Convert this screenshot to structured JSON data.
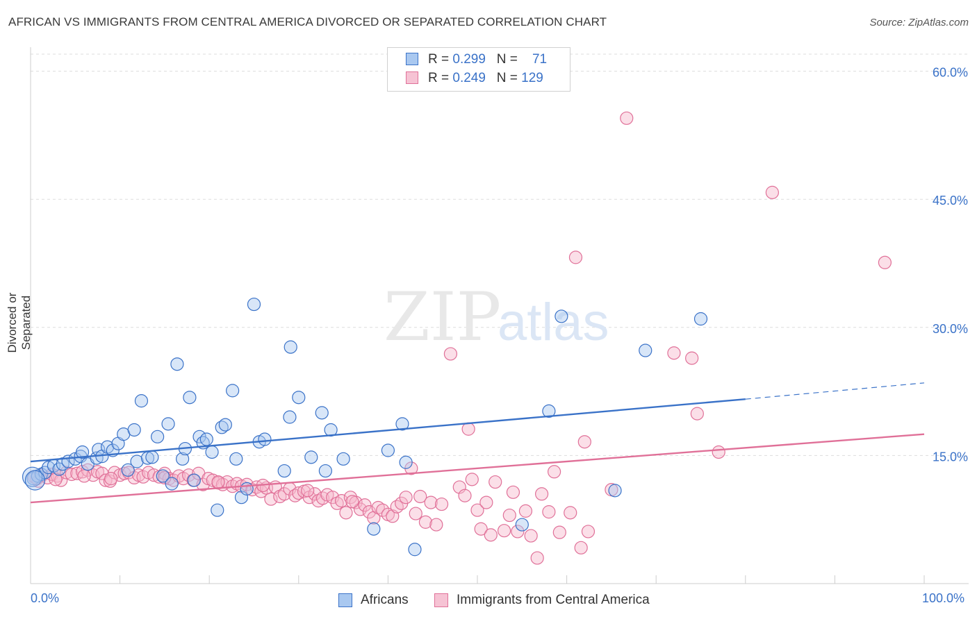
{
  "title": "AFRICAN VS IMMIGRANTS FROM CENTRAL AMERICA DIVORCED OR SEPARATED CORRELATION CHART",
  "source": "Source: ZipAtlas.com",
  "watermark": {
    "zip": "ZIP",
    "atlas": "atlas"
  },
  "legend": {
    "row1": {
      "r_label": "R = ",
      "r_value": "0.299",
      "n_label": "N = ",
      "n_value": "71"
    },
    "row2": {
      "r_label": "R = ",
      "r_value": "0.249",
      "n_label": "N = ",
      "n_value": "129"
    }
  },
  "colors": {
    "blue": "#3a72c8",
    "blue_fill": "#a9c8f0",
    "pink": "#e07098",
    "pink_fill": "#f6b9cd",
    "grid": "#dddddd",
    "axis_text": "#3a72c8"
  },
  "chart_data": {
    "type": "scatter",
    "title": "AFRICAN VS IMMIGRANTS FROM CENTRAL AMERICA DIVORCED OR SEPARATED CORRELATION CHART",
    "xlabel": "",
    "ylabel": "Divorced or Separated",
    "xlim": [
      0,
      100
    ],
    "ylim": [
      0,
      62
    ],
    "x_tick_labels": [
      "0.0%",
      "100.0%"
    ],
    "y_tick_labels": [
      "15.0%",
      "30.0%",
      "45.0%",
      "60.0%"
    ],
    "y_ticks": [
      15,
      30,
      45,
      60
    ],
    "grid": true,
    "legend_position": "bottom",
    "series": [
      {
        "name": "Africans",
        "color": "#3a72c8",
        "R": 0.299,
        "N": 71,
        "trend": {
          "x0": 0,
          "y0": 14.3,
          "x1": 80,
          "y1": 21.6,
          "dashed_to_x": 100,
          "dashed_to_y": 23.5
        },
        "points": [
          [
            0.3,
            12.3
          ],
          [
            0.8,
            12.6
          ],
          [
            1.2,
            12.8
          ],
          [
            1.6,
            13.0
          ],
          [
            2.0,
            13.6
          ],
          [
            2.6,
            13.8
          ],
          [
            3.2,
            13.4
          ],
          [
            3.6,
            14.0
          ],
          [
            4.2,
            14.3
          ],
          [
            5.0,
            14.6
          ],
          [
            5.6,
            14.9
          ],
          [
            5.8,
            15.4
          ],
          [
            6.4,
            14.0
          ],
          [
            7.4,
            14.7
          ],
          [
            7.6,
            15.7
          ],
          [
            8.0,
            14.9
          ],
          [
            8.6,
            16.0
          ],
          [
            9.2,
            15.6
          ],
          [
            9.8,
            16.4
          ],
          [
            10.4,
            17.5
          ],
          [
            10.9,
            13.3
          ],
          [
            11.6,
            18.0
          ],
          [
            11.9,
            14.3
          ],
          [
            12.4,
            21.4
          ],
          [
            13.1,
            14.7
          ],
          [
            13.6,
            14.8
          ],
          [
            14.2,
            17.2
          ],
          [
            14.8,
            12.6
          ],
          [
            15.4,
            18.7
          ],
          [
            15.8,
            11.7
          ],
          [
            16.4,
            25.7
          ],
          [
            17.0,
            14.6
          ],
          [
            17.3,
            15.8
          ],
          [
            17.8,
            21.8
          ],
          [
            18.3,
            12.1
          ],
          [
            18.9,
            17.2
          ],
          [
            19.3,
            16.5
          ],
          [
            19.7,
            16.9
          ],
          [
            20.3,
            15.4
          ],
          [
            20.9,
            8.6
          ],
          [
            21.4,
            18.3
          ],
          [
            21.8,
            18.6
          ],
          [
            22.6,
            22.6
          ],
          [
            23.0,
            14.6
          ],
          [
            23.6,
            10.1
          ],
          [
            24.2,
            11.1
          ],
          [
            25.0,
            32.7
          ],
          [
            25.6,
            16.6
          ],
          [
            26.2,
            16.9
          ],
          [
            28.4,
            13.2
          ],
          [
            29.0,
            19.5
          ],
          [
            29.1,
            27.7
          ],
          [
            30.0,
            21.8
          ],
          [
            31.4,
            14.8
          ],
          [
            32.6,
            20.0
          ],
          [
            33.0,
            13.2
          ],
          [
            33.6,
            18.0
          ],
          [
            35.0,
            14.6
          ],
          [
            38.4,
            6.4
          ],
          [
            40.0,
            15.6
          ],
          [
            41.6,
            18.7
          ],
          [
            42.0,
            14.2
          ],
          [
            43.0,
            4.0
          ],
          [
            55.0,
            6.9
          ],
          [
            58.0,
            20.2
          ],
          [
            59.4,
            31.3
          ],
          [
            65.4,
            10.9
          ],
          [
            68.8,
            27.3
          ],
          [
            75.0,
            31.0
          ],
          [
            0.2,
            12.5
          ],
          [
            0.5,
            12.1
          ]
        ]
      },
      {
        "name": "Immigrants from Central America",
        "color": "#e07098",
        "R": 0.249,
        "N": 129,
        "trend": {
          "x0": 0,
          "y0": 9.5,
          "x1": 100,
          "y1": 17.5
        },
        "points": [
          [
            0.4,
            12.5
          ],
          [
            0.9,
            12.0
          ],
          [
            1.3,
            12.7
          ],
          [
            1.9,
            12.4
          ],
          [
            2.4,
            12.8
          ],
          [
            3.0,
            12.6
          ],
          [
            3.4,
            12.1
          ],
          [
            4.0,
            13.0
          ],
          [
            4.6,
            12.8
          ],
          [
            5.2,
            12.9
          ],
          [
            5.8,
            13.1
          ],
          [
            6.4,
            13.3
          ],
          [
            7.0,
            12.7
          ],
          [
            7.5,
            13.1
          ],
          [
            8.0,
            12.9
          ],
          [
            8.4,
            12.1
          ],
          [
            8.9,
            12.0
          ],
          [
            9.4,
            13.0
          ],
          [
            10.0,
            12.7
          ],
          [
            10.5,
            12.9
          ],
          [
            11.0,
            13.0
          ],
          [
            11.6,
            12.4
          ],
          [
            12.1,
            12.7
          ],
          [
            12.6,
            12.5
          ],
          [
            13.2,
            13.0
          ],
          [
            13.8,
            12.7
          ],
          [
            14.4,
            12.5
          ],
          [
            15.0,
            12.9
          ],
          [
            15.5,
            12.3
          ],
          [
            16.0,
            12.1
          ],
          [
            16.6,
            12.6
          ],
          [
            17.1,
            12.3
          ],
          [
            17.7,
            12.7
          ],
          [
            18.2,
            12.1
          ],
          [
            18.8,
            12.9
          ],
          [
            19.3,
            11.6
          ],
          [
            19.9,
            12.3
          ],
          [
            20.4,
            12.1
          ],
          [
            21.0,
            11.8
          ],
          [
            21.5,
            11.6
          ],
          [
            22.0,
            11.9
          ],
          [
            22.6,
            11.4
          ],
          [
            23.1,
            11.7
          ],
          [
            23.6,
            11.4
          ],
          [
            24.2,
            11.6
          ],
          [
            24.8,
            11.0
          ],
          [
            25.3,
            11.3
          ],
          [
            25.8,
            10.8
          ],
          [
            26.4,
            11.2
          ],
          [
            26.9,
            9.9
          ],
          [
            27.4,
            11.3
          ],
          [
            27.9,
            10.2
          ],
          [
            28.4,
            10.5
          ],
          [
            29.0,
            11.1
          ],
          [
            29.6,
            10.3
          ],
          [
            30.0,
            10.6
          ],
          [
            30.6,
            10.8
          ],
          [
            31.2,
            10.1
          ],
          [
            31.8,
            10.5
          ],
          [
            32.2,
            9.7
          ],
          [
            32.7,
            10.0
          ],
          [
            33.2,
            10.4
          ],
          [
            33.8,
            10.1
          ],
          [
            34.3,
            9.4
          ],
          [
            34.8,
            9.7
          ],
          [
            35.3,
            8.3
          ],
          [
            35.8,
            10.1
          ],
          [
            36.4,
            9.5
          ],
          [
            36.9,
            8.7
          ],
          [
            37.4,
            9.2
          ],
          [
            37.9,
            8.4
          ],
          [
            38.4,
            7.7
          ],
          [
            38.9,
            8.9
          ],
          [
            39.4,
            8.6
          ],
          [
            40.0,
            8.1
          ],
          [
            40.5,
            7.9
          ],
          [
            41.0,
            9.0
          ],
          [
            41.5,
            9.4
          ],
          [
            42.0,
            10.1
          ],
          [
            42.6,
            13.5
          ],
          [
            43.1,
            8.2
          ],
          [
            43.6,
            10.2
          ],
          [
            44.2,
            7.2
          ],
          [
            44.8,
            9.5
          ],
          [
            45.4,
            6.9
          ],
          [
            46.0,
            9.3
          ],
          [
            47.0,
            26.9
          ],
          [
            48.0,
            11.3
          ],
          [
            48.6,
            10.3
          ],
          [
            49.0,
            18.1
          ],
          [
            49.4,
            12.2
          ],
          [
            50.0,
            8.6
          ],
          [
            50.4,
            6.4
          ],
          [
            51.0,
            9.5
          ],
          [
            51.5,
            5.7
          ],
          [
            52.0,
            11.9
          ],
          [
            53.0,
            6.2
          ],
          [
            53.6,
            8.0
          ],
          [
            54.0,
            10.7
          ],
          [
            54.5,
            6.1
          ],
          [
            55.4,
            8.5
          ],
          [
            56.0,
            5.6
          ],
          [
            56.7,
            3.0
          ],
          [
            57.2,
            10.5
          ],
          [
            58.0,
            8.4
          ],
          [
            58.6,
            13.1
          ],
          [
            59.2,
            6.0
          ],
          [
            60.4,
            8.3
          ],
          [
            61.0,
            38.2
          ],
          [
            61.6,
            4.2
          ],
          [
            62.0,
            16.6
          ],
          [
            62.4,
            6.1
          ],
          [
            65.0,
            11.0
          ],
          [
            66.7,
            54.5
          ],
          [
            72.0,
            27.0
          ],
          [
            74.0,
            26.4
          ],
          [
            74.6,
            19.9
          ],
          [
            77.0,
            15.4
          ],
          [
            83.0,
            45.8
          ],
          [
            95.6,
            37.6
          ],
          [
            0.7,
            12.3
          ],
          [
            2.8,
            12.2
          ],
          [
            6.0,
            12.6
          ],
          [
            9.0,
            12.3
          ],
          [
            15.0,
            12.4
          ],
          [
            21.0,
            11.9
          ],
          [
            26.0,
            11.5
          ],
          [
            31.0,
            10.9
          ],
          [
            36.0,
            9.6
          ]
        ]
      }
    ]
  },
  "bottom_legend": {
    "item1": "Africans",
    "item2": "Immigrants from Central America"
  }
}
